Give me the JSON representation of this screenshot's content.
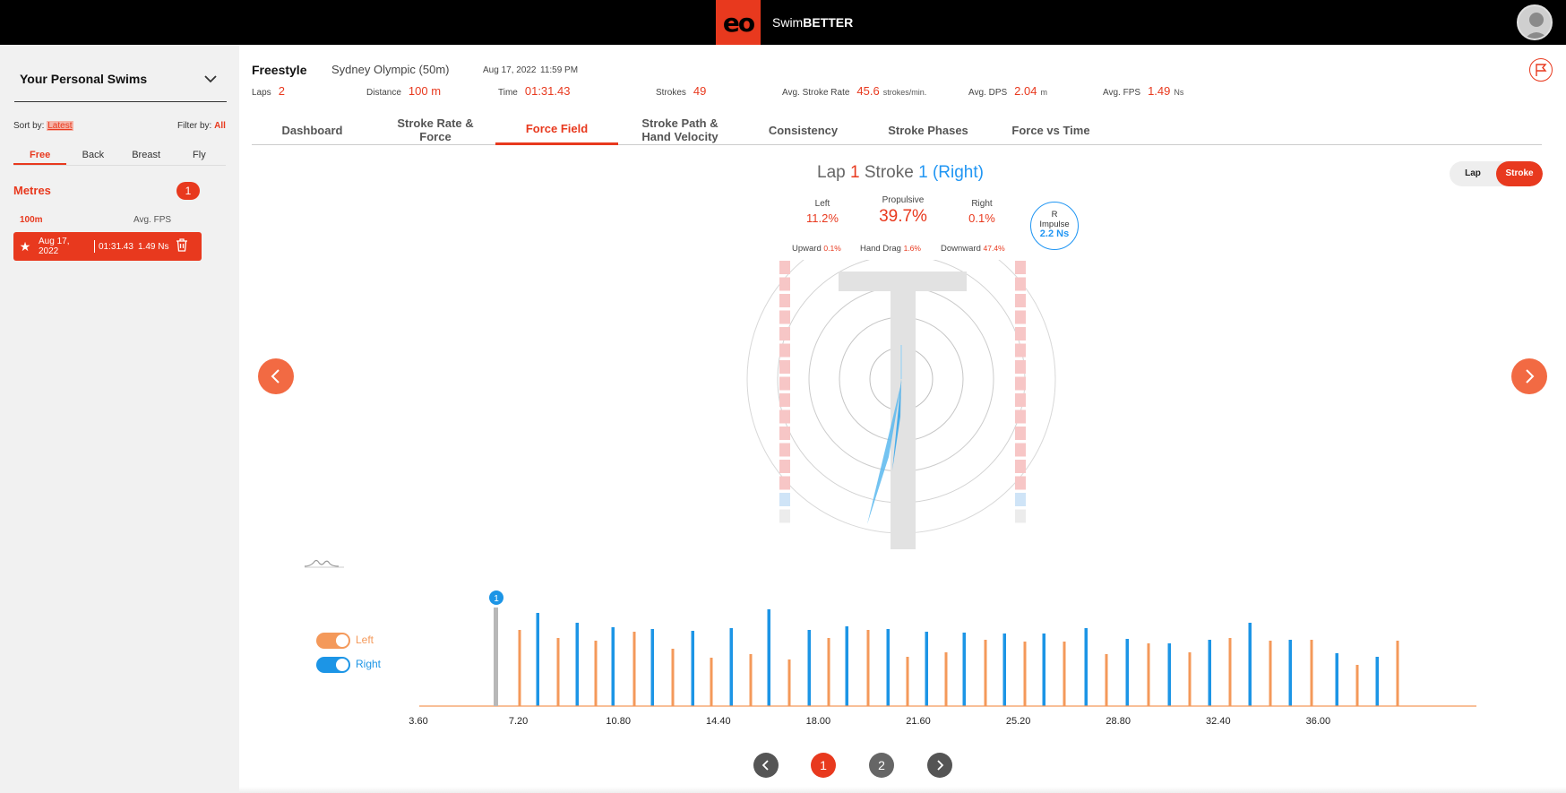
{
  "app": {
    "logo_text": "eo",
    "title_prefix": "Swim",
    "title_bold": "BETTER"
  },
  "sidebar": {
    "title": "Your Personal Swims",
    "sort_label": "Sort by:",
    "sort_value": "Latest",
    "filter_label": "Filter by:",
    "filter_value": "All",
    "stroke_tabs": [
      "Free",
      "Back",
      "Breast",
      "Fly"
    ],
    "active_stroke_tab": "Free",
    "section_label": "Metres",
    "section_count": "1",
    "col_distance": "100m",
    "col_fps": "Avg. FPS",
    "swims": [
      {
        "date": "Aug 17, 2022",
        "time": "01:31.43",
        "fps": "1.49 Ns",
        "favorite": true
      }
    ]
  },
  "session": {
    "stroke": "Freestyle",
    "pool": "Sydney Olympic (50m)",
    "date": "Aug 17, 2022",
    "time": "11:59 PM",
    "stats": {
      "laps_label": "Laps",
      "laps_value": "2",
      "distance_label": "Distance",
      "distance_value": "100 m",
      "time_label": "Time",
      "time_value": "01:31.43",
      "strokes_label": "Strokes",
      "strokes_value": "49",
      "rate_label": "Avg. Stroke Rate",
      "rate_value": "45.6",
      "rate_unit": "strokes/min.",
      "dps_label": "Avg. DPS",
      "dps_value": "2.04",
      "dps_unit": "m",
      "fps_label": "Avg. FPS",
      "fps_value": "1.49",
      "fps_unit": "Ns"
    }
  },
  "tabs": {
    "dashboard": "Dashboard",
    "rate_force_1": "Stroke Rate &",
    "rate_force_2": "Force",
    "force_field": "Force Field",
    "path_1": "Stroke Path &",
    "path_2": "Hand Velocity",
    "consistency": "Consistency",
    "phases": "Stroke Phases",
    "force_time": "Force vs Time",
    "active": "Force Field"
  },
  "force_field": {
    "lap_word": "Lap",
    "lap_num": "1",
    "stroke_word": "Stroke",
    "stroke_num": "1",
    "side": "(Right)",
    "toggle_lap": "Lap",
    "toggle_stroke": "Stroke",
    "toggle_active": "Stroke",
    "left_label": "Left",
    "left_value": "11.2%",
    "propulsive_label": "Propulsive",
    "propulsive_value": "39.7%",
    "right_label": "Right",
    "right_value": "0.1%",
    "upward_label": "Upward",
    "upward_value": "0.1%",
    "drag_label": "Hand Drag",
    "drag_value": "1.6%",
    "downward_label": "Downward",
    "downward_value": "47.4%",
    "impulse_line1": "R",
    "impulse_line2": "Impulse",
    "impulse_value": "2.2 Ns"
  },
  "stroke_chart": {
    "left_toggle_label": "Left",
    "right_toggle_label": "Right",
    "selected_marker": "1",
    "x_ticks": [
      "3.60",
      "7.20",
      "10.80",
      "14.40",
      "18.00",
      "21.60",
      "25.20",
      "28.80",
      "32.40",
      "36.00"
    ],
    "colors": {
      "left": "#f4995a",
      "right": "#1c95e6",
      "accent": "#e8391e"
    }
  },
  "pagination": {
    "pages": [
      "1",
      "2"
    ],
    "active": "1"
  }
}
